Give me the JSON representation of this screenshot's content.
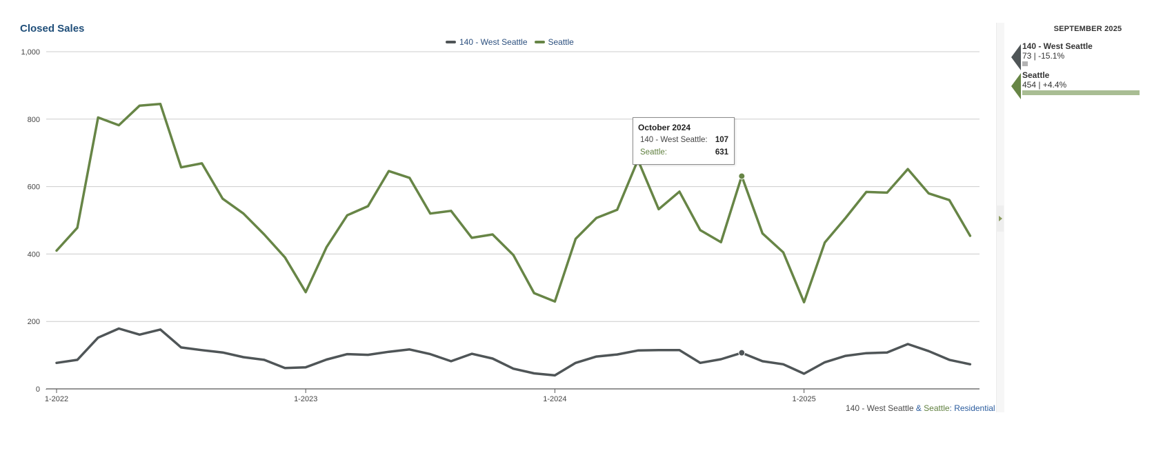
{
  "title": "Closed Sales",
  "footnote": {
    "part1": "140 - West Seattle",
    "amp": " & ",
    "part2": "Seattle",
    "colon": ": ",
    "part3": "Residential"
  },
  "colors": {
    "west_seattle": "#4f5557",
    "seattle": "#678546",
    "seattle_light": "#a9bd93",
    "grid": "#cccccc",
    "axis": "#555555"
  },
  "chart_data": {
    "type": "line",
    "title": "Closed Sales",
    "xlabel": "",
    "ylabel": "",
    "ylim": [
      0,
      1000
    ],
    "yticks": [
      "0",
      "200",
      "400",
      "600",
      "800",
      "1,000"
    ],
    "yticks_values": [
      0,
      200,
      400,
      600,
      800,
      1000
    ],
    "xticks": [
      "1-2022",
      "1-2023",
      "1-2024",
      "1-2025"
    ],
    "xticks_index": [
      0,
      12,
      24,
      36
    ],
    "grid": true,
    "legend_position": "top",
    "x": [
      "2022-01",
      "2022-02",
      "2022-03",
      "2022-04",
      "2022-05",
      "2022-06",
      "2022-07",
      "2022-08",
      "2022-09",
      "2022-10",
      "2022-11",
      "2022-12",
      "2023-01",
      "2023-02",
      "2023-03",
      "2023-04",
      "2023-05",
      "2023-06",
      "2023-07",
      "2023-08",
      "2023-09",
      "2023-10",
      "2023-11",
      "2023-12",
      "2024-01",
      "2024-02",
      "2024-03",
      "2024-04",
      "2024-05",
      "2024-06",
      "2024-07",
      "2024-08",
      "2024-09",
      "2024-10",
      "2024-11",
      "2024-12",
      "2025-01",
      "2025-02",
      "2025-03",
      "2025-04",
      "2025-05",
      "2025-06",
      "2025-07",
      "2025-08",
      "2025-09"
    ],
    "series": [
      {
        "name": "140 - West Seattle",
        "values": [
          77,
          86,
          152,
          179,
          161,
          176,
          123,
          115,
          108,
          94,
          86,
          62,
          64,
          87,
          103,
          101,
          110,
          117,
          103,
          82,
          104,
          90,
          60,
          46,
          40,
          77,
          96,
          102,
          114,
          115,
          115,
          77,
          88,
          107,
          82,
          73,
          45,
          79,
          98,
          106,
          108,
          133,
          112,
          86,
          73
        ]
      },
      {
        "name": "Seattle",
        "values": [
          410,
          478,
          805,
          782,
          840,
          845,
          657,
          669,
          564,
          520,
          458,
          390,
          287,
          420,
          515,
          542,
          646,
          626,
          520,
          528,
          448,
          458,
          397,
          284,
          259,
          445,
          507,
          531,
          679,
          533,
          585,
          471,
          435,
          631,
          461,
          405,
          257,
          434,
          507,
          584,
          582,
          652,
          580,
          560,
          454
        ]
      }
    ],
    "highlight_index": 33,
    "tooltip": {
      "title": "October 2024",
      "rows": [
        {
          "label": "140 - West Seattle:",
          "value": "107"
        },
        {
          "label": "Seattle:",
          "value": "631"
        }
      ]
    }
  },
  "side_panel": {
    "month": "SEPTEMBER 2025",
    "entries": [
      {
        "name": "140 - West Seattle",
        "value_text": "73 | -15.1%",
        "value": 73,
        "bar_fraction": 0.045
      },
      {
        "name": "Seattle",
        "value_text": "454 | +4.4%",
        "value": 454,
        "bar_fraction": 1.0
      }
    ]
  }
}
